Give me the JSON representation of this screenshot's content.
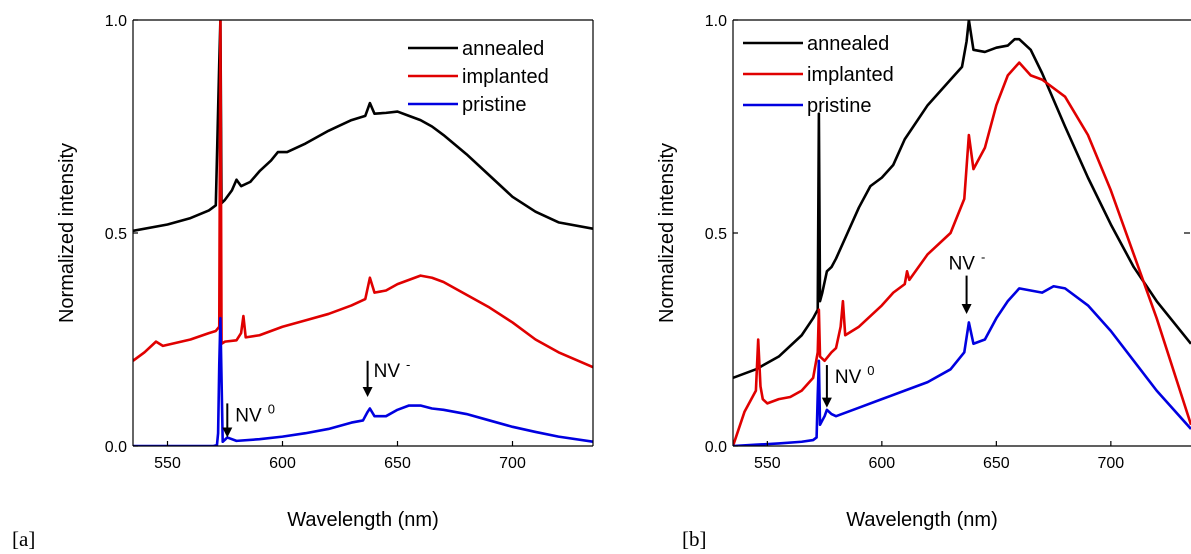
{
  "chart_data": [
    {
      "type": "line",
      "panel_label": "[a]",
      "xlabel": "Wavelength (nm)",
      "ylabel": "Normalized intensity",
      "xlim": [
        535,
        735
      ],
      "ylim": [
        0,
        1
      ],
      "xticks": [
        550,
        600,
        650,
        700
      ],
      "yticks": [
        0.0,
        0.5,
        1.0
      ],
      "ytick_labels": [
        "0.0",
        "0.5",
        "1.0"
      ],
      "legend_position": "top-right",
      "series": [
        {
          "name": "annealed",
          "color": "#000000",
          "x": [
            535,
            550,
            560,
            568,
            571,
            572.5,
            573,
            573.5,
            575,
            578,
            580,
            582,
            586,
            590,
            595,
            598,
            602,
            610,
            620,
            630,
            636,
            638,
            640,
            645,
            650,
            655,
            660,
            665,
            670,
            680,
            690,
            700,
            710,
            720,
            735
          ],
          "y": [
            0.505,
            0.52,
            0.535,
            0.553,
            0.565,
            0.9,
            1.0,
            0.57,
            0.578,
            0.6,
            0.625,
            0.61,
            0.62,
            0.645,
            0.67,
            0.69,
            0.69,
            0.71,
            0.74,
            0.765,
            0.775,
            0.805,
            0.78,
            0.782,
            0.785,
            0.775,
            0.765,
            0.75,
            0.73,
            0.685,
            0.635,
            0.585,
            0.55,
            0.525,
            0.51
          ]
        },
        {
          "name": "implanted",
          "color": "#e00000",
          "x": [
            535,
            540,
            545,
            548,
            552,
            560,
            568,
            571,
            572.5,
            573,
            573.5,
            575,
            580,
            582,
            583,
            584,
            590,
            600,
            610,
            620,
            630,
            636,
            638,
            640,
            645,
            650,
            655,
            660,
            665,
            670,
            680,
            690,
            700,
            710,
            720,
            735
          ],
          "y": [
            0.2,
            0.22,
            0.245,
            0.235,
            0.24,
            0.25,
            0.265,
            0.27,
            0.28,
            1.0,
            0.24,
            0.245,
            0.248,
            0.265,
            0.305,
            0.255,
            0.26,
            0.28,
            0.295,
            0.31,
            0.33,
            0.345,
            0.395,
            0.36,
            0.365,
            0.38,
            0.39,
            0.4,
            0.395,
            0.385,
            0.355,
            0.325,
            0.29,
            0.25,
            0.22,
            0.185
          ]
        },
        {
          "name": "pristine",
          "color": "#0000e0",
          "x": [
            535,
            570,
            571.5,
            572,
            572.5,
            573,
            574,
            575,
            576,
            577,
            580,
            590,
            600,
            610,
            620,
            630,
            635,
            637,
            638,
            640,
            645,
            650,
            655,
            660,
            665,
            670,
            680,
            690,
            700,
            710,
            720,
            735
          ],
          "y": [
            0.0,
            0.0,
            0.002,
            0.03,
            0.19,
            0.3,
            0.01,
            0.015,
            0.02,
            0.018,
            0.012,
            0.016,
            0.022,
            0.03,
            0.04,
            0.055,
            0.06,
            0.08,
            0.088,
            0.07,
            0.07,
            0.085,
            0.095,
            0.095,
            0.088,
            0.085,
            0.075,
            0.06,
            0.045,
            0.033,
            0.022,
            0.01
          ]
        }
      ],
      "annotations": [
        {
          "text_main": "NV",
          "text_sup": "0",
          "x": 576,
          "y_tip": 0.02,
          "y_tail": 0.1
        },
        {
          "text_main": "NV",
          "text_sup": "-",
          "x": 637,
          "y_tip": 0.115,
          "y_tail": 0.2
        }
      ]
    },
    {
      "type": "line",
      "panel_label": "[b]",
      "xlabel": "Wavelength (nm)",
      "ylabel": "Normalized intensity",
      "xlim": [
        535,
        735
      ],
      "ylim": [
        0,
        1
      ],
      "xticks": [
        550,
        600,
        650,
        700
      ],
      "yticks": [
        0.0,
        0.5,
        1.0
      ],
      "ytick_labels": [
        "0.0",
        "0.5",
        "1.0"
      ],
      "legend_position": "top-left",
      "series": [
        {
          "name": "annealed",
          "color": "#000000",
          "x": [
            535,
            545,
            555,
            565,
            570,
            572,
            572.5,
            573,
            574,
            576,
            578,
            580,
            585,
            590,
            595,
            600,
            605,
            610,
            620,
            630,
            635,
            637,
            638,
            640,
            645,
            650,
            655,
            658,
            660,
            665,
            670,
            680,
            690,
            700,
            710,
            720,
            735
          ],
          "y": [
            0.16,
            0.18,
            0.21,
            0.26,
            0.3,
            0.32,
            0.78,
            0.34,
            0.36,
            0.41,
            0.42,
            0.44,
            0.5,
            0.56,
            0.61,
            0.63,
            0.66,
            0.72,
            0.8,
            0.86,
            0.89,
            0.95,
            1.0,
            0.93,
            0.925,
            0.935,
            0.94,
            0.955,
            0.955,
            0.93,
            0.875,
            0.75,
            0.63,
            0.52,
            0.42,
            0.34,
            0.24
          ]
        },
        {
          "name": "implanted",
          "color": "#e00000",
          "x": [
            535,
            540,
            545,
            546,
            547,
            548,
            550,
            555,
            560,
            565,
            570,
            572,
            572.5,
            573,
            575,
            578,
            580,
            582,
            583,
            584,
            590,
            600,
            605,
            610,
            611,
            612,
            620,
            630,
            636,
            638,
            640,
            645,
            650,
            655,
            660,
            665,
            670,
            680,
            690,
            700,
            710,
            720,
            735
          ],
          "y": [
            0.0,
            0.08,
            0.13,
            0.25,
            0.14,
            0.11,
            0.1,
            0.11,
            0.115,
            0.13,
            0.16,
            0.22,
            0.32,
            0.21,
            0.2,
            0.22,
            0.23,
            0.28,
            0.34,
            0.26,
            0.28,
            0.33,
            0.36,
            0.38,
            0.41,
            0.39,
            0.45,
            0.5,
            0.58,
            0.73,
            0.65,
            0.7,
            0.8,
            0.87,
            0.9,
            0.87,
            0.86,
            0.82,
            0.73,
            0.6,
            0.45,
            0.3,
            0.05
          ]
        },
        {
          "name": "pristine",
          "color": "#0000e0",
          "x": [
            535,
            545,
            555,
            565,
            570,
            571.5,
            572,
            572.5,
            573,
            574,
            575,
            576,
            578,
            580,
            590,
            600,
            610,
            620,
            630,
            636,
            638,
            640,
            645,
            650,
            655,
            660,
            665,
            670,
            675,
            680,
            690,
            700,
            710,
            720,
            735
          ],
          "y": [
            0.0,
            0.003,
            0.006,
            0.01,
            0.014,
            0.02,
            0.12,
            0.2,
            0.05,
            0.06,
            0.07,
            0.085,
            0.075,
            0.07,
            0.09,
            0.11,
            0.13,
            0.15,
            0.18,
            0.22,
            0.29,
            0.24,
            0.25,
            0.3,
            0.34,
            0.37,
            0.365,
            0.36,
            0.375,
            0.37,
            0.33,
            0.27,
            0.2,
            0.13,
            0.04
          ]
        }
      ],
      "annotations": [
        {
          "text_main": "NV",
          "text_sup": "0",
          "x": 576,
          "y_tip": 0.09,
          "y_tail": 0.19
        },
        {
          "text_main": "NV",
          "text_sup": "-",
          "x": 637,
          "y_tip": 0.31,
          "y_tail": 0.4
        }
      ]
    }
  ]
}
